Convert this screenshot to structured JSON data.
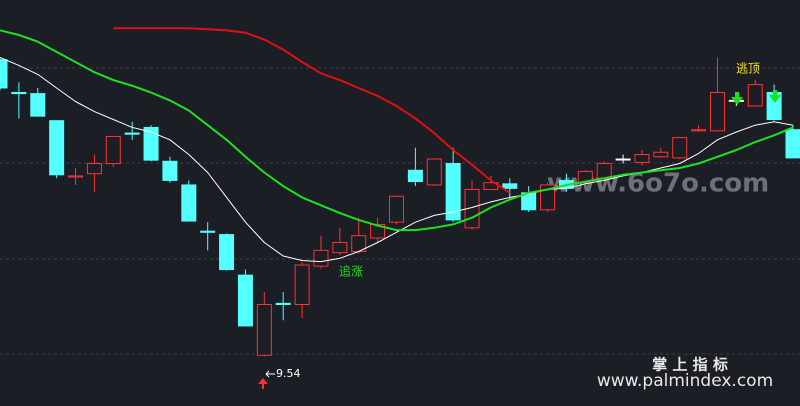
{
  "chart_data": {
    "type": "candlestick",
    "ylim": [
      9.1,
      12.7
    ],
    "up_color": "#ff3232",
    "down_color": "#54ffff",
    "flat_color": "#ffffff",
    "open": [
      12.17,
      11.88,
      11.87,
      11.63,
      11.13,
      11.16,
      11.25,
      11.52,
      11.57,
      11.27,
      11.06,
      10.65,
      10.62,
      10.26,
      9.55,
      10.01,
      10.0,
      10.34,
      10.46,
      10.47,
      10.59,
      10.73,
      11.19,
      11.06,
      11.25,
      10.68,
      11.02,
      11.07,
      10.99,
      10.84,
      11.1,
      11.08,
      11.12,
      11.29,
      11.26,
      11.31,
      11.3,
      11.54,
      11.54,
      11.81,
      11.76,
      11.88,
      11.55
    ],
    "high": [
      12.19,
      11.97,
      11.92,
      11.63,
      11.21,
      11.33,
      11.49,
      11.62,
      11.59,
      11.31,
      11.1,
      10.73,
      10.63,
      10.31,
      10.11,
      10.11,
      10.38,
      10.61,
      10.68,
      10.77,
      10.77,
      10.96,
      11.39,
      11.29,
      11.39,
      11.1,
      11.14,
      11.12,
      11.05,
      11.08,
      11.16,
      11.19,
      11.27,
      11.33,
      11.37,
      11.39,
      11.48,
      11.59,
      12.19,
      11.86,
      11.99,
      11.95,
      11.59
    ],
    "low": [
      11.9,
      11.65,
      11.67,
      11.12,
      11.06,
      11.0,
      11.22,
      11.46,
      11.27,
      11.08,
      10.74,
      10.48,
      10.3,
      9.81,
      9.54,
      9.86,
      9.88,
      10.32,
      10.44,
      10.45,
      10.55,
      10.71,
      11.05,
      11.05,
      10.73,
      10.66,
      11.02,
      10.93,
      10.82,
      10.82,
      11.0,
      11.05,
      11.1,
      11.25,
      11.23,
      11.3,
      11.29,
      11.53,
      11.54,
      11.76,
      11.76,
      11.63,
      11.3
    ],
    "close": [
      11.92,
      11.87,
      11.67,
      11.15,
      11.14,
      11.25,
      11.49,
      11.51,
      11.28,
      11.1,
      10.74,
      10.64,
      10.31,
      9.81,
      10.0,
      10.0,
      10.35,
      10.48,
      10.55,
      10.61,
      10.71,
      10.96,
      11.09,
      11.29,
      10.75,
      11.02,
      11.08,
      11.03,
      10.84,
      11.06,
      11.03,
      11.18,
      11.25,
      11.29,
      11.33,
      11.35,
      11.48,
      11.55,
      11.88,
      11.81,
      11.95,
      11.64,
      11.3
    ],
    "lines": [
      {
        "color": "#ffffff",
        "width": 1,
        "values": [
          12.19,
          12.12,
          12.04,
          11.92,
          11.8,
          11.71,
          11.64,
          11.57,
          11.53,
          11.46,
          11.33,
          11.17,
          10.95,
          10.73,
          10.55,
          10.43,
          10.39,
          10.38,
          10.41,
          10.47,
          10.55,
          10.64,
          10.73,
          10.79,
          10.82,
          10.86,
          10.91,
          10.95,
          10.98,
          11.02,
          11.03,
          11.07,
          11.1,
          11.14,
          11.17,
          11.21,
          11.25,
          11.34,
          11.46,
          11.53,
          11.59,
          11.62,
          11.59
        ]
      },
      {
        "color": "#1fe01f",
        "width": 2,
        "values": [
          12.43,
          12.39,
          12.33,
          12.24,
          12.15,
          12.06,
          11.99,
          11.94,
          11.88,
          11.81,
          11.72,
          11.59,
          11.46,
          11.31,
          11.17,
          11.05,
          10.95,
          10.88,
          10.81,
          10.75,
          10.7,
          10.66,
          10.66,
          10.68,
          10.71,
          10.77,
          10.86,
          10.93,
          10.99,
          11.02,
          11.06,
          11.09,
          11.12,
          11.15,
          11.17,
          11.19,
          11.21,
          11.25,
          11.31,
          11.37,
          11.44,
          11.5,
          11.57
        ]
      },
      {
        "color": "#e01010",
        "width": 2,
        "values": [
          null,
          null,
          null,
          null,
          null,
          null,
          12.45,
          12.45,
          12.45,
          12.45,
          12.45,
          12.44,
          12.43,
          12.41,
          12.35,
          12.26,
          12.15,
          12.05,
          11.99,
          11.92,
          11.85,
          11.76,
          11.65,
          11.52,
          11.37,
          11.24,
          11.1,
          10.99,
          null,
          null,
          null,
          null,
          null,
          null,
          null,
          null,
          null,
          null,
          null,
          null,
          null,
          null,
          null
        ]
      }
    ],
    "annotations": [
      "逃顶",
      "追涨"
    ],
    "watermarks": [
      "www.6o7o.com",
      "掌 上 指 标",
      "www.palmindex.com"
    ]
  }
}
